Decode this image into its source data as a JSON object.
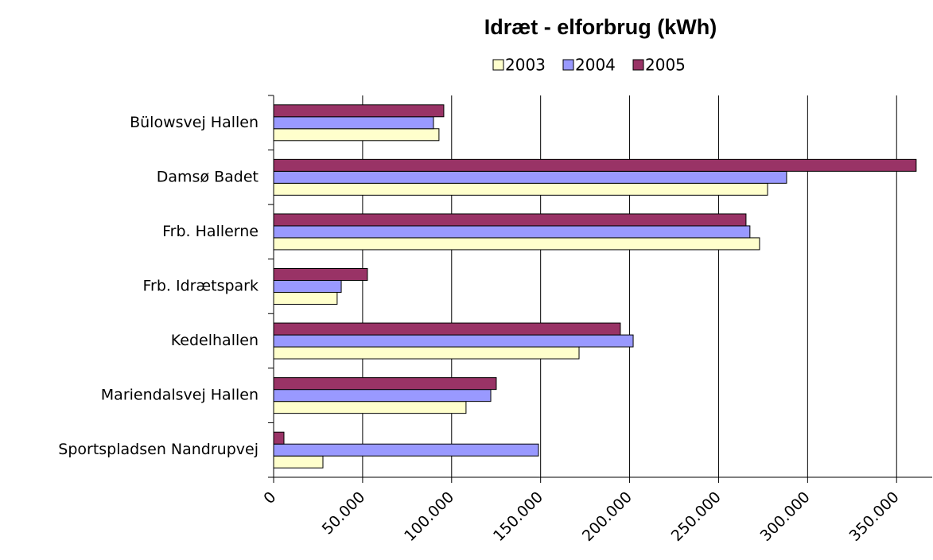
{
  "chart_data": {
    "type": "hbar",
    "title": "Idræt - elforbrug (kWh)",
    "categories": [
      "Bülowsvej Hallen",
      "Damsø Badet",
      "Frb. Hallerne",
      "Frb. Idrætspark",
      "Kedelhallen",
      "Mariendalsvej Hallen",
      "Sportspladsen Nandrupvej"
    ],
    "series": [
      {
        "name": "2003",
        "color": "#ffffcc",
        "values": [
          92900,
          277500,
          273000,
          35700,
          171600,
          108100,
          27700
        ]
      },
      {
        "name": "2004",
        "color": "#9999ff",
        "values": [
          89800,
          288200,
          267600,
          38000,
          202000,
          122000,
          148800
        ]
      },
      {
        "name": "2005",
        "color": "#993366",
        "values": [
          95600,
          361000,
          265400,
          52700,
          194800,
          125100,
          5800
        ]
      }
    ],
    "xlim": [
      0,
      370000
    ],
    "xticks": [
      0,
      {
        "value": 50000,
        "label": "50.000"
      },
      {
        "value": 100000,
        "label": "100.000"
      },
      {
        "value": 150000,
        "label": "150.000"
      },
      {
        "value": 200000,
        "label": "200.000"
      },
      {
        "value": 250000,
        "label": "250.000"
      },
      {
        "value": 300000,
        "label": "300.000"
      },
      {
        "value": 350000,
        "label": "350.000"
      }
    ],
    "grid": true,
    "legend": "top"
  }
}
